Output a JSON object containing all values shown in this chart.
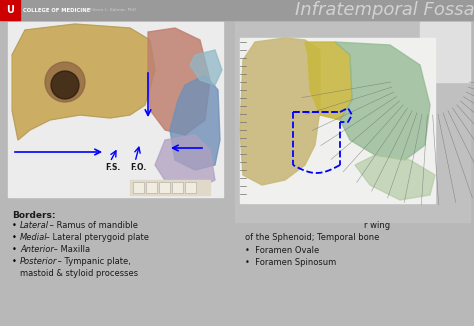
{
  "bg_color": "#b8b8b8",
  "header_bg": "#9a9a9a",
  "red_block_color": "#cc0000",
  "title_text": "Infratemporal Fossa",
  "title_color": "#d8d8d8",
  "title_fontsize": 13,
  "college_text": "COLLEGE OF MEDICINE",
  "author_text": "Eileen L. Kalmar, PhD",
  "left_panel_bg": "#ececec",
  "right_outer_bg": "#c8c8c8",
  "right_inner_bg": "#e8e8e8",
  "borders_title": "Borders:",
  "borders_items": [
    [
      "Lateral",
      " – Ramus of mandible"
    ],
    [
      "Medial",
      " – Lateral pterygoid plate"
    ],
    [
      "Anterior",
      " – Maxilla"
    ],
    [
      "Posterior",
      " – Tympanic plate,"
    ],
    [
      "",
      "mastoid & styloid processes"
    ]
  ],
  "right_text_top": "r wing",
  "right_text_mid": "of the Sphenoid; Temporal bone",
  "right_bullets": [
    "Foramen Ovale",
    "Foramen Spinosum"
  ],
  "text_color": "#1a1a1a",
  "label_fs": "F.S.",
  "label_fo": "F.O.",
  "skull1_tan": "#c8a855",
  "skull1_pink": "#c08070",
  "skull1_blue": "#7090b8",
  "skull1_lightblue": "#90b8c8",
  "skull1_lavender": "#b0a0c0",
  "skull1_brown": "#8a6040",
  "skull2_beige": "#c8b870",
  "skull2_yellow": "#c8b840",
  "skull2_green": "#90b890",
  "skull2_lightgreen": "#b0c8a0"
}
